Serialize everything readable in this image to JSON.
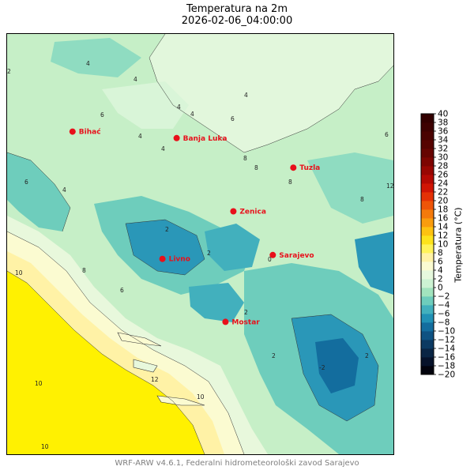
{
  "title": {
    "line1": "Temperatura na 2m",
    "line2": "2026-02-06_04:00:00"
  },
  "map": {
    "cities": [
      {
        "name": "Bihać",
        "lon": 15.87,
        "lat": 44.82
      },
      {
        "name": "Banja Luka",
        "lon": 17.19,
        "lat": 44.77
      },
      {
        "name": "Tuzla",
        "lon": 18.67,
        "lat": 44.54
      },
      {
        "name": "Zenica",
        "lon": 17.91,
        "lat": 44.2
      },
      {
        "name": "Livno",
        "lon": 17.01,
        "lat": 43.83
      },
      {
        "name": "Sarajevo",
        "lon": 18.41,
        "lat": 43.86
      },
      {
        "name": "Mostar",
        "lon": 17.81,
        "lat": 43.34
      }
    ],
    "city_marker_color": "#e8101b",
    "contour_labels": [
      "4",
      "6",
      "2",
      "8",
      "10",
      "12",
      "0",
      "-2"
    ]
  },
  "colorbar": {
    "label": "Temperatura (°C)",
    "min": -20,
    "max": 40,
    "step": 2,
    "ticks": [
      "40",
      "38",
      "36",
      "34",
      "32",
      "30",
      "28",
      "26",
      "24",
      "22",
      "20",
      "18",
      "16",
      "14",
      "12",
      "10",
      "8",
      "6",
      "4",
      "2",
      "0",
      "−2",
      "−4",
      "−6",
      "−8",
      "−10",
      "−12",
      "−14",
      "−16",
      "−18",
      "−20"
    ],
    "colors_bottom_to_top": [
      "#02030d",
      "#06122a",
      "#0a2544",
      "#0c3a62",
      "#0e5282",
      "#136d9e",
      "#2191b5",
      "#42b0bd",
      "#6ecdbc",
      "#a2e4be",
      "#cdf3d3",
      "#e6f8dd",
      "#fbfbd1",
      "#fff2a6",
      "#fff35a",
      "#fde31c",
      "#fdc211",
      "#f99c0e",
      "#f47a0c",
      "#ee5509",
      "#e43106",
      "#d01505",
      "#b40a04",
      "#980703",
      "#7d0502",
      "#660402",
      "#560301",
      "#4a0201",
      "#3e0101",
      "#330000"
    ]
  },
  "footer": "WRF-ARW v4.6.1, Federalni hidrometeorološki zavod Sarajevo"
}
